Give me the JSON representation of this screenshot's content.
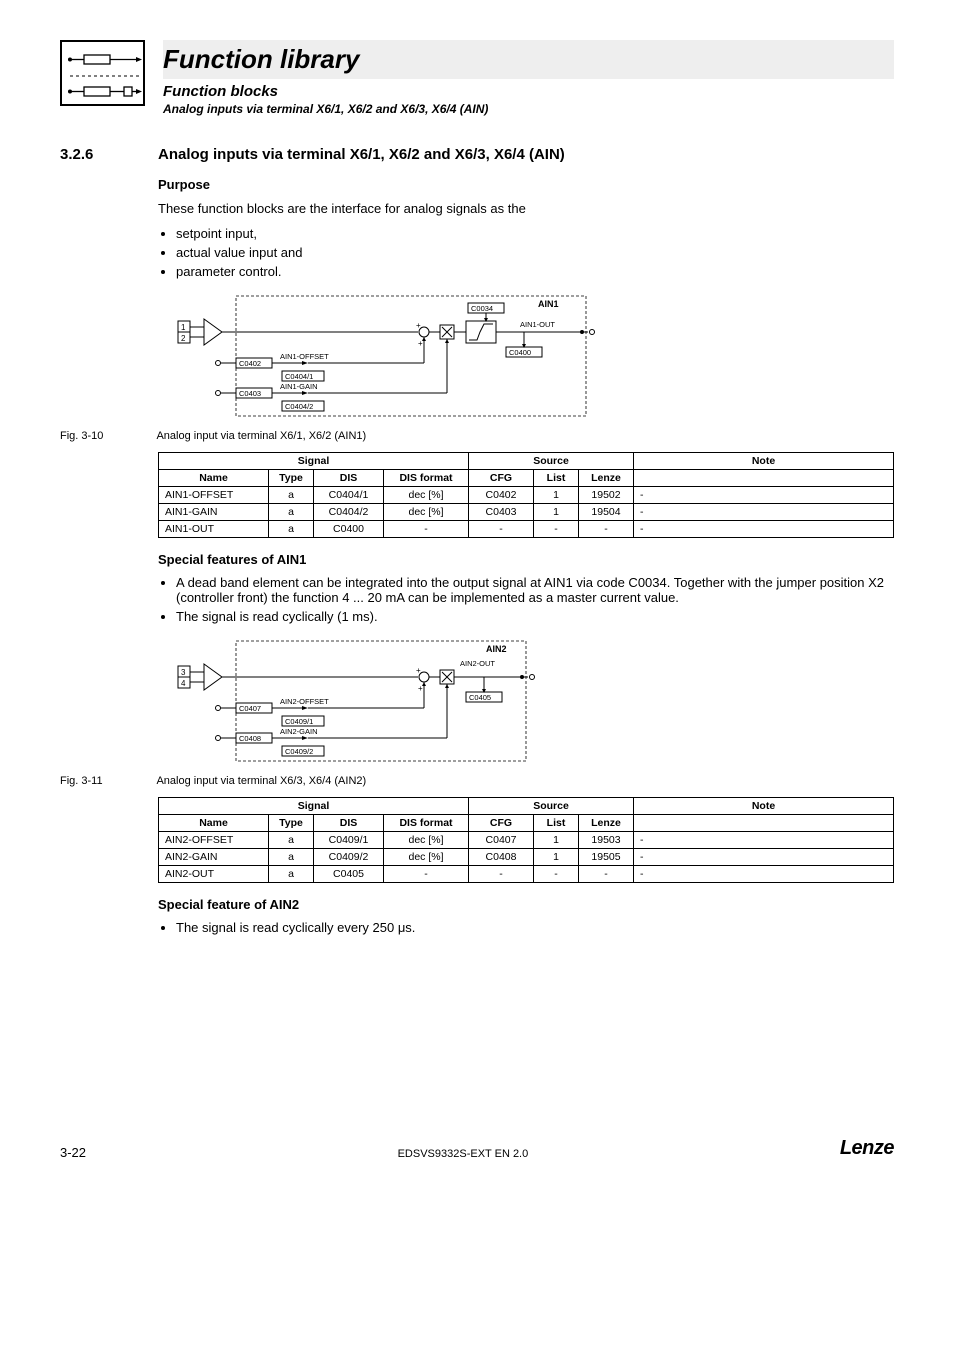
{
  "header": {
    "title": "Function library",
    "subtitle1": "Function blocks",
    "subtitle2": "Analog inputs via terminal X6/1, X6/2 and X6/3, X6/4 (AIN)"
  },
  "section": {
    "number": "3.2.6",
    "title": "Analog inputs via terminal X6/1, X6/2 and X6/3, X6/4 (AIN)"
  },
  "purpose": {
    "heading": "Purpose",
    "intro": "These function blocks are the interface for analog signals as the",
    "bullets": [
      "setpoint input,",
      "actual value input and",
      "parameter control."
    ]
  },
  "diagram1": {
    "labels": {
      "t1": "1",
      "t2": "2",
      "c0402": "C0402",
      "c0403": "C0403",
      "offset": "AIN1-OFFSET",
      "c0404_1": "C0404/1",
      "gain": "AIN1-GAIN",
      "c0404_2": "C0404/2",
      "c0034": "C0034",
      "ain1": "AIN1",
      "out": "AIN1-OUT",
      "c0400": "C0400"
    }
  },
  "fig1": {
    "label": "Fig. 3-10",
    "caption": "Analog input via terminal X6/1, X6/2 (AIN1)"
  },
  "table_headers": {
    "signal": "Signal",
    "source": "Source",
    "note": "Note",
    "name": "Name",
    "type": "Type",
    "dis": "DIS",
    "disf": "DIS format",
    "cfg": "CFG",
    "list": "List",
    "lenze": "Lenze"
  },
  "table1_rows": [
    {
      "name": "AIN1-OFFSET",
      "type": "a",
      "dis": "C0404/1",
      "disf": "dec [%]",
      "cfg": "C0402",
      "list": "1",
      "lenze": "19502",
      "note": "-"
    },
    {
      "name": "AIN1-GAIN",
      "type": "a",
      "dis": "C0404/2",
      "disf": "dec [%]",
      "cfg": "C0403",
      "list": "1",
      "lenze": "19504",
      "note": "-"
    },
    {
      "name": "AIN1-OUT",
      "type": "a",
      "dis": "C0400",
      "disf": "-",
      "cfg": "-",
      "list": "-",
      "lenze": "-",
      "note": "-"
    }
  ],
  "special1": {
    "heading": "Special features of AIN1",
    "bullets": [
      "A dead band element can be integrated into the output signal at AIN1 via code C0034. Together with the jumper position X2 (controller front) the function 4 ... 20 mA can be implemented as a master current value.",
      "The signal is read cyclically (1 ms)."
    ]
  },
  "diagram2": {
    "labels": {
      "t3": "3",
      "t4": "4",
      "c0407": "C0407",
      "c0408": "C0408",
      "offset": "AIN2-OFFSET",
      "c0409_1": "C0409/1",
      "gain": "AIN2-GAIN",
      "c0409_2": "C0409/2",
      "ain2": "AIN2",
      "out": "AIN2-OUT",
      "c0405": "C0405"
    }
  },
  "fig2": {
    "label": "Fig. 3-11",
    "caption": "Analog input via terminal X6/3, X6/4 (AIN2)"
  },
  "table2_rows": [
    {
      "name": "AIN2-OFFSET",
      "type": "a",
      "dis": "C0409/1",
      "disf": "dec [%]",
      "cfg": "C0407",
      "list": "1",
      "lenze": "19503",
      "note": "-"
    },
    {
      "name": "AIN2-GAIN",
      "type": "a",
      "dis": "C0409/2",
      "disf": "dec [%]",
      "cfg": "C0408",
      "list": "1",
      "lenze": "19505",
      "note": "-"
    },
    {
      "name": "AIN2-OUT",
      "type": "a",
      "dis": "C0405",
      "disf": "-",
      "cfg": "-",
      "list": "-",
      "lenze": "-",
      "note": "-"
    }
  ],
  "special2": {
    "heading": "Special feature of AIN2",
    "bullets": [
      "The signal is read cyclically every 250 μs."
    ]
  },
  "footer": {
    "page": "3-22",
    "docid": "EDSVS9332S-EXT EN 2.0",
    "brand": "Lenze"
  },
  "colors": {
    "grey": "#eeeeee",
    "black": "#000000",
    "border": "#000000"
  }
}
